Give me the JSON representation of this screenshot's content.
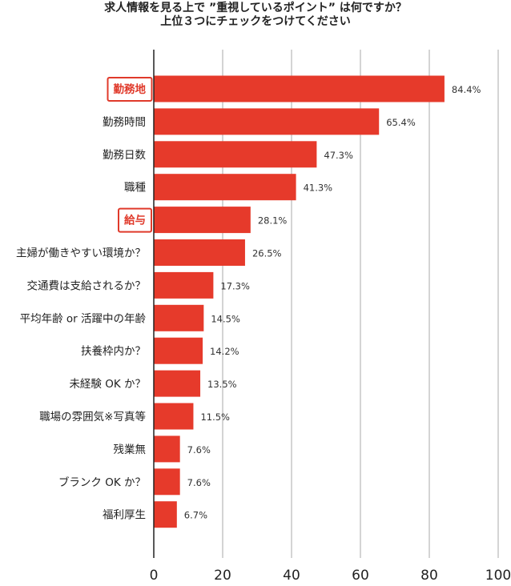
{
  "chart_data": {
    "type": "bar",
    "orientation": "horizontal",
    "title": "求人情報を見る上で ”重視しているポイント” は何ですか？",
    "subtitle": "上位３つにチェックをつけてください",
    "categories": [
      "勤務地",
      "勤務時間",
      "勤務日数",
      "職種",
      "給与",
      "主婦が働きやすい環境か？",
      "交通費は支給されるか？",
      "平均年齢 or 活躍中の年齢",
      "扶養枠内か？",
      "未経験 OK か？",
      "職場の雰囲気※写真等",
      "残業無",
      "ブランク OK か？",
      "福利厚生"
    ],
    "values": [
      84.4,
      65.4,
      47.3,
      41.3,
      28.1,
      26.5,
      17.3,
      14.5,
      14.2,
      13.5,
      11.5,
      7.6,
      7.6,
      6.7
    ],
    "value_labels": [
      "84.4%",
      "65.4%",
      "47.3%",
      "41.3%",
      "28.1%",
      "26.5%",
      "17.3%",
      "14.5%",
      "14.2%",
      "13.5%",
      "11.5%",
      "7.6%",
      "7.6%",
      "6.7%"
    ],
    "highlighted": [
      "勤務地",
      "給与"
    ],
    "xlim": [
      0,
      100
    ],
    "xticks": [
      0,
      20,
      40,
      60,
      80,
      100
    ],
    "xtick_labels": [
      "0",
      "20",
      "40",
      "60",
      "80",
      "100"
    ],
    "grid": "vertical",
    "bar_color": "#e63a2b",
    "highlight_color": "#e03a2b",
    "grid_color": "#aaaaaa"
  }
}
